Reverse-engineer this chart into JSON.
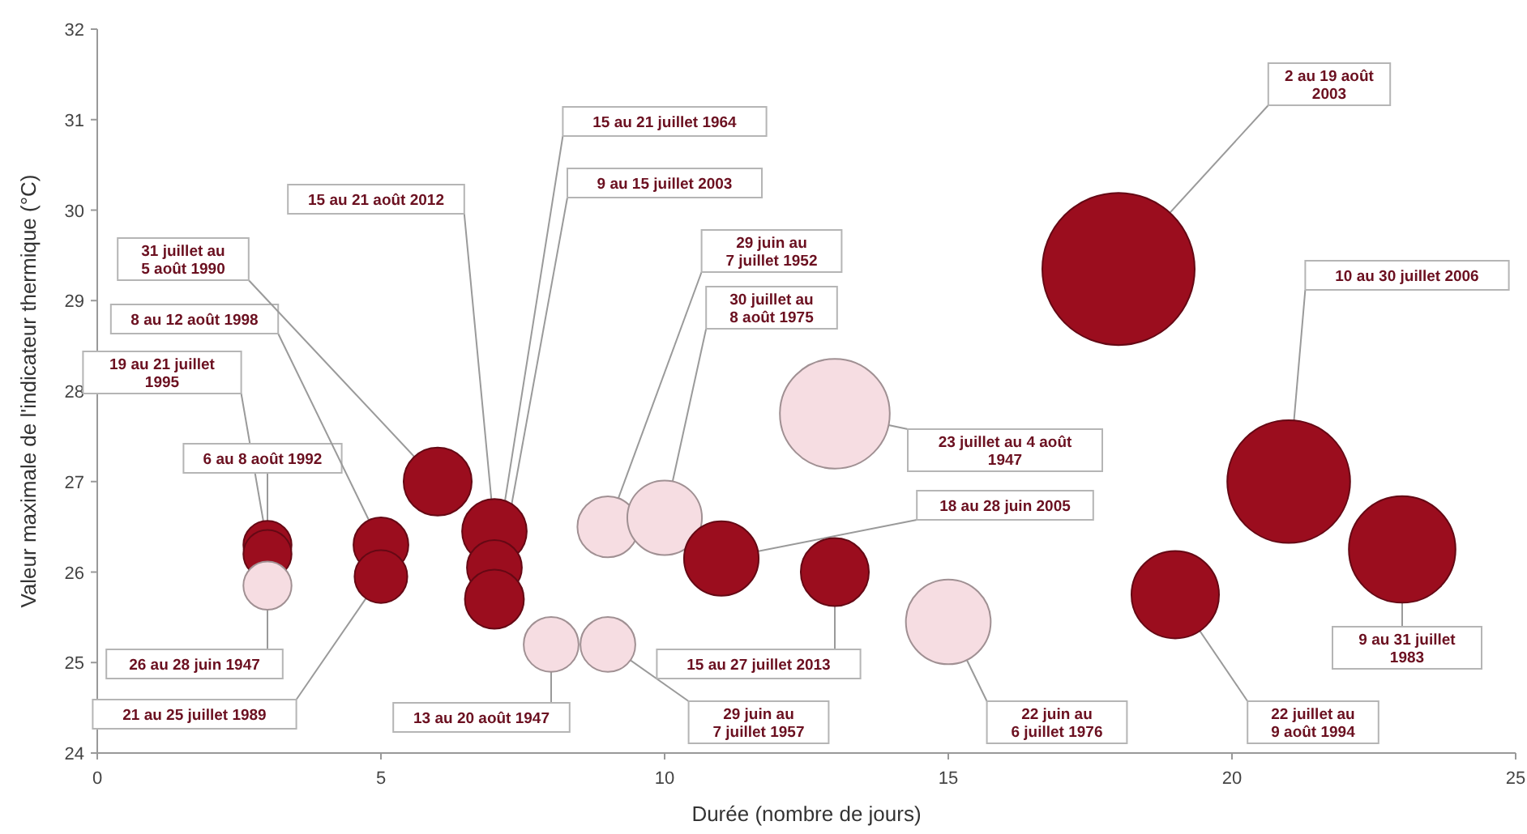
{
  "chart_data": {
    "type": "bubble",
    "xlabel": "Durée (nombre de jours)",
    "ylabel": "Valeur maximale de l'indicateur thermique (°C)",
    "xlim": [
      0,
      25
    ],
    "xticks": [
      0,
      5,
      10,
      15,
      20,
      25
    ],
    "ylim": [
      24,
      32
    ],
    "yticks": [
      24,
      25,
      26,
      27,
      28,
      29,
      30,
      31,
      32
    ],
    "grid": false,
    "series": [
      {
        "x": [
          3,
          3,
          3,
          5,
          5,
          6,
          7,
          7,
          7,
          8,
          9,
          9,
          10,
          11,
          13,
          13,
          15,
          18,
          19,
          21,
          23
        ],
        "values": [
          26.3,
          26.2,
          25.85,
          26.3,
          25.95,
          27.0,
          26.45,
          26.05,
          25.7,
          25.2,
          26.5,
          25.2,
          26.6,
          26.15,
          27.75,
          26.0,
          25.45,
          29.35,
          25.75,
          27.0,
          26.25
        ],
        "sizes": [
          0.1,
          0.1,
          0.1,
          0.13,
          0.12,
          0.2,
          0.18,
          0.13,
          0.15,
          0.13,
          0.16,
          0.13,
          0.24,
          0.24,
          0.52,
          0.2,
          0.31,
          1,
          0.33,
          0.65,
          0.49
        ],
        "colors": [
          "#9b0d1e",
          "#9b0d1e",
          "#f6dde2",
          "#9b0d1e",
          "#9b0d1e",
          "#9b0d1e",
          "#9b0d1e",
          "#9b0d1e",
          "#9b0d1e",
          "#f6dde2",
          "#f6dde2",
          "#f6dde2",
          "#f6dde2",
          "#9b0d1e",
          "#f6dde2",
          "#9b0d1e",
          "#f6dde2",
          "#9b0d1e",
          "#9b0d1e",
          "#9b0d1e",
          "#9b0d1e"
        ]
      }
    ],
    "annotations": [
      "19 au 21 juillet 1995",
      {
        "text": "6 au 8 août 1992",
        "x": 3,
        "y": 26.2
      },
      {
        "text": "26 au 28 juin 1947",
        "x": 3,
        "y": 25.85
      },
      "8 au 12 août 1998",
      "21 au 25 juillet 1989",
      "31 juillet au 5 août 1990",
      "15 au 21 août 2012",
      "15 au 21 juillet 1964",
      "9 au 15 juillet 2003",
      {
        "text": "13 au 20 août 1947",
        "x": 8,
        "y": 25.2
      },
      "29 juin au 7 juillet 1952",
      "29 juin au 7 juillet 1957",
      "30 juillet au 8 août 1975",
      "18 au 28 juin 2005",
      "23 juillet au 4 août 1947",
      {
        "text": "15 au 27 juillet 2013",
        "x": 13,
        "y": 26.0
      },
      "22 juin au 6 juillet 1976",
      {
        "text": "2 au 19 août 2003",
        "x": 18,
        "y": 29.35
      },
      "22 juillet au 9 août 1994",
      "10 au 30 juillet 2006",
      {
        "text": "9 au 31 juillet 1983",
        "x": 23,
        "y": 26.25
      }
    ]
  }
}
